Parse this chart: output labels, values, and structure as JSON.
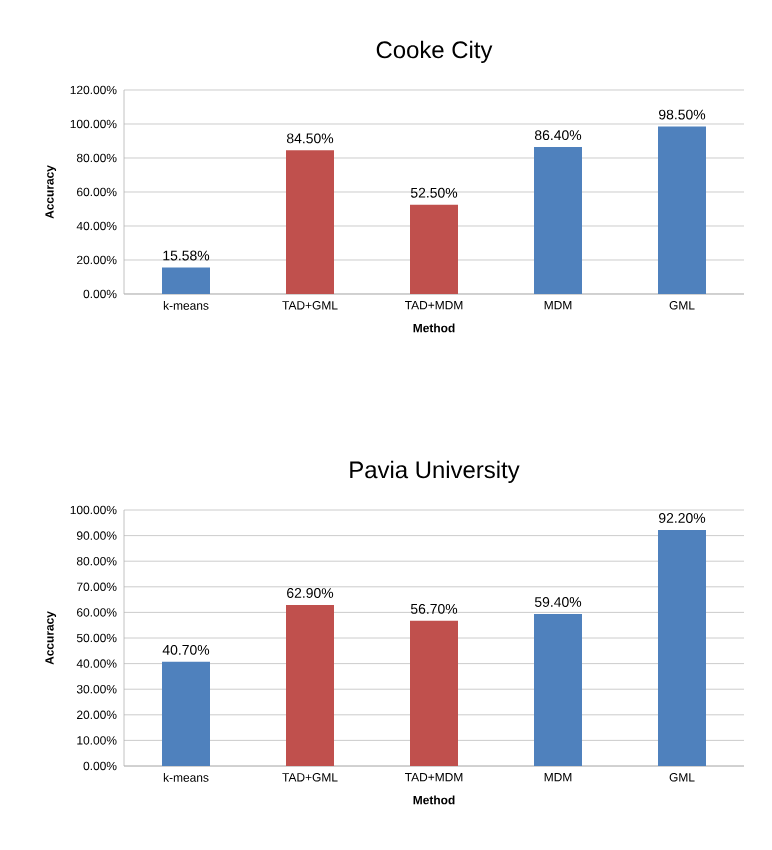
{
  "chart_data": [
    {
      "type": "bar",
      "title": "Cooke City",
      "xlabel": "Method",
      "ylabel": "Accuracy",
      "categories": [
        "k-means",
        "TAD+GML",
        "TAD+MDM",
        "MDM",
        "GML"
      ],
      "values": [
        15.58,
        84.5,
        52.5,
        86.4,
        98.5
      ],
      "colors": [
        "#4f81bd",
        "#c0504d",
        "#c0504d",
        "#4f81bd",
        "#4f81bd"
      ],
      "value_labels": [
        "15.58%",
        "84.50%",
        "52.50%",
        "86.40%",
        "98.50%"
      ],
      "ylim": [
        0,
        120
      ],
      "yticks": [
        {
          "value": 0,
          "label": "0.00%"
        },
        {
          "value": 20,
          "label": "20.00%"
        },
        {
          "value": 40,
          "label": "40.00%"
        },
        {
          "value": 60,
          "label": "60.00%"
        },
        {
          "value": 80,
          "label": "80.00%"
        },
        {
          "value": 100,
          "label": "100.00%"
        },
        {
          "value": 120,
          "label": "120.00%"
        }
      ],
      "grid": "y"
    },
    {
      "type": "bar",
      "title": "Pavia University",
      "xlabel": "Method",
      "ylabel": "Accuracy",
      "categories": [
        "k-means",
        "TAD+GML",
        "TAD+MDM",
        "MDM",
        "GML"
      ],
      "values": [
        40.7,
        62.9,
        56.7,
        59.4,
        92.2
      ],
      "colors": [
        "#4f81bd",
        "#c0504d",
        "#c0504d",
        "#4f81bd",
        "#4f81bd"
      ],
      "value_labels": [
        "40.70%",
        "62.90%",
        "56.70%",
        "59.40%",
        "92.20%"
      ],
      "ylim": [
        0,
        100
      ],
      "yticks": [
        {
          "value": 0,
          "label": "0.00%"
        },
        {
          "value": 10,
          "label": "10.00%"
        },
        {
          "value": 20,
          "label": "20.00%"
        },
        {
          "value": 30,
          "label": "30.00%"
        },
        {
          "value": 40,
          "label": "40.00%"
        },
        {
          "value": 50,
          "label": "50.00%"
        },
        {
          "value": 60,
          "label": "60.00%"
        },
        {
          "value": 70,
          "label": "70.00%"
        },
        {
          "value": 80,
          "label": "80.00%"
        },
        {
          "value": 90,
          "label": "90.00%"
        },
        {
          "value": 100,
          "label": "100.00%"
        }
      ],
      "grid": "y"
    }
  ]
}
